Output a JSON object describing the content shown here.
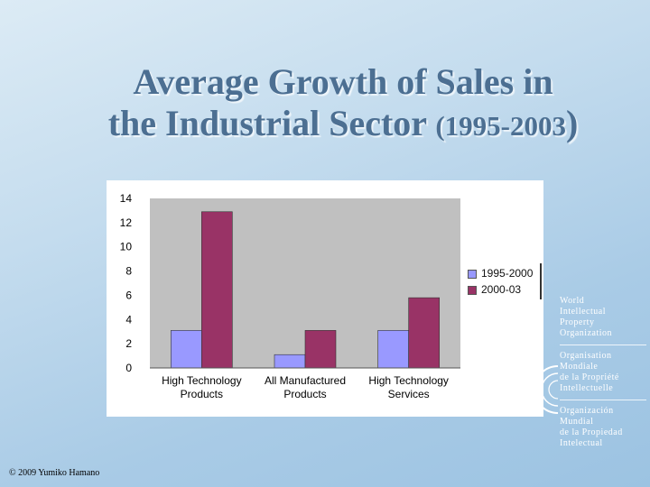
{
  "slide": {
    "title_line1": "Average Growth of Sales in",
    "title_line2_text": "the Industrial Sector",
    "title_years": "(1995-2003",
    "title_close": ")",
    "copyright": "© 2009 Yumiko Hamano"
  },
  "organization": {
    "en": [
      "World",
      "Intellectual",
      "Property",
      "Organization"
    ],
    "fr": [
      "Organisation",
      "Mondiale",
      "de la Propriété",
      "Intellectuelle"
    ],
    "es": [
      "Organización",
      "Mundial",
      "de la Propiedad",
      "Intelectual"
    ]
  },
  "chart_data": {
    "type": "bar",
    "title": "",
    "xlabel": "",
    "ylabel": "",
    "categories": [
      [
        "High Technology",
        "Products"
      ],
      [
        "All Manufactured",
        "Products"
      ],
      [
        "High Technology",
        "Services"
      ]
    ],
    "series": [
      {
        "name": "1995-2000",
        "values": [
          3.1,
          1.1,
          3.1
        ],
        "color": "#9999ff"
      },
      {
        "name": "2000-03",
        "values": [
          12.9,
          3.1,
          5.8
        ],
        "color": "#993366"
      }
    ],
    "ylim": [
      0,
      14
    ],
    "yticks": [
      0,
      2,
      4,
      6,
      8,
      10,
      12,
      14
    ],
    "plot_background": "#c0c0c0",
    "grid": false,
    "legend_position": "right"
  }
}
